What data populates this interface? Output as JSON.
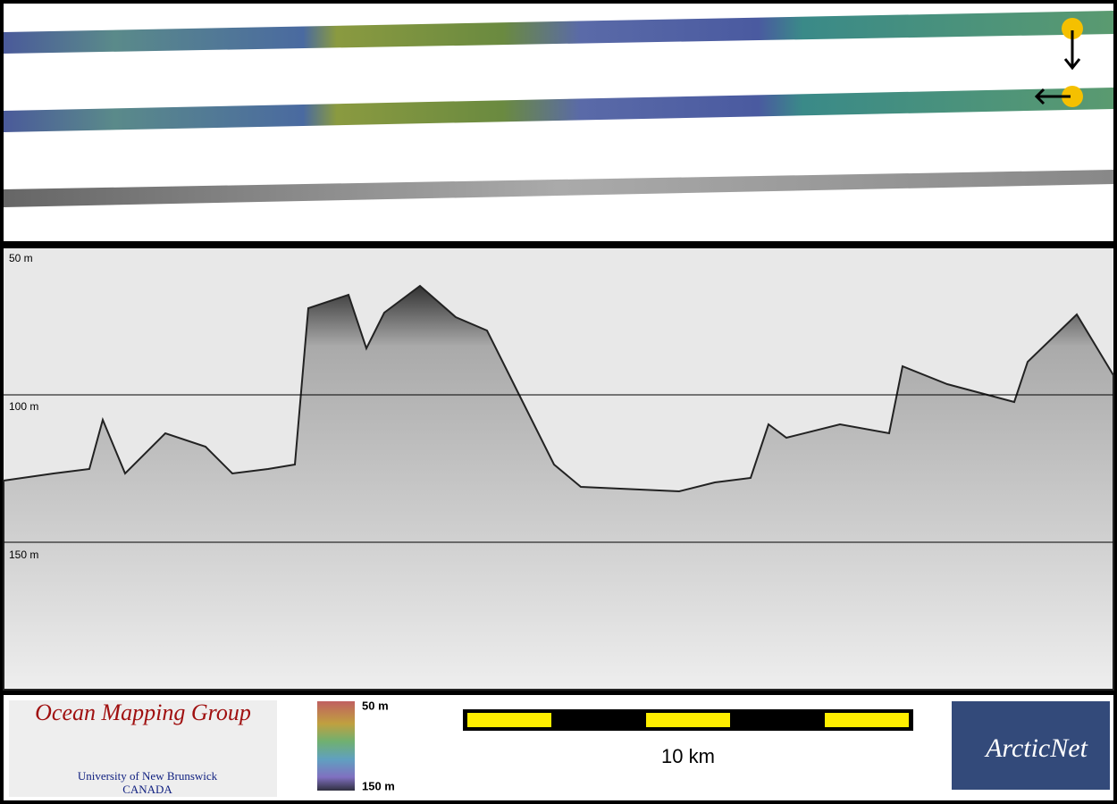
{
  "profile": {
    "depth_labels": [
      "50 m",
      "100 m",
      "150 m"
    ]
  },
  "logo": {
    "title": "Ocean Mapping Group",
    "university": "University of New Brunswick",
    "country": "CANADA"
  },
  "colorbar": {
    "top": "50 m",
    "bottom": "150 m"
  },
  "scale_bar": {
    "label": "10 km"
  },
  "partner": {
    "label": "ArcticNet"
  }
}
